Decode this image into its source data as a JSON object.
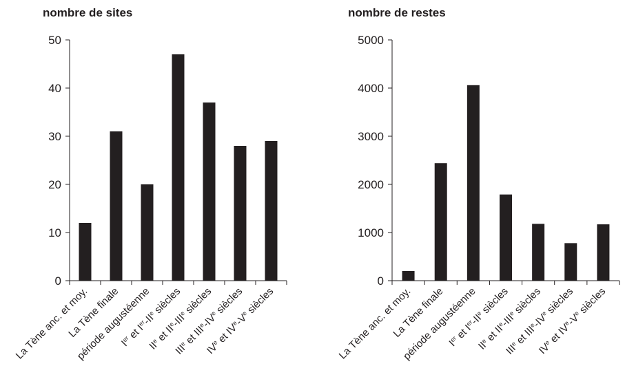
{
  "chart_data": [
    {
      "type": "bar",
      "title": "nombre de sites",
      "categories": [
        "La Tène anc. et moy.",
        "La Tène finale",
        "période augustéenne",
        "Ier et Ier-IIe siècles",
        "IIe et IIe-IIIe siècles",
        "IIIe et IIIe-IVe siècles",
        "IVe et IVe-Ve siècles"
      ],
      "values": [
        12,
        31,
        20,
        47,
        37,
        28,
        29
      ],
      "yticks": [
        "0",
        "10",
        "20",
        "30",
        "40",
        "50"
      ],
      "ylim": [
        0,
        50
      ],
      "xlabel": "",
      "ylabel": "",
      "grid": false,
      "bar_color": "#231f20"
    },
    {
      "type": "bar",
      "title": "nombre de restes",
      "categories": [
        "La Tène anc. et moy.",
        "La Tène finale",
        "période augustéenne",
        "Ier et Ier-IIe siècles",
        "IIe et IIe-IIIe siècles",
        "IIIe et IIIe-IVe siècles",
        "IVe et IVe-Ve siècles"
      ],
      "values": [
        200,
        2440,
        4060,
        1790,
        1180,
        780,
        1170
      ],
      "yticks": [
        "0",
        "1000",
        "2000",
        "3000",
        "4000",
        "5000"
      ],
      "ylim": [
        0,
        5000
      ],
      "xlabel": "",
      "ylabel": "",
      "grid": false,
      "bar_color": "#231f20"
    }
  ],
  "category_label_parts": [
    [
      {
        "t": "La Tène anc. et moy.",
        "sup": false
      }
    ],
    [
      {
        "t": "La Tène finale",
        "sup": false
      }
    ],
    [
      {
        "t": "période augustéenne",
        "sup": false
      }
    ],
    [
      {
        "t": "I",
        "sup": false
      },
      {
        "t": "er",
        "sup": true
      },
      {
        "t": " et I",
        "sup": false
      },
      {
        "t": "er",
        "sup": true
      },
      {
        "t": "-II",
        "sup": false
      },
      {
        "t": "e",
        "sup": true
      },
      {
        "t": " siècles",
        "sup": false
      }
    ],
    [
      {
        "t": "II",
        "sup": false
      },
      {
        "t": "e",
        "sup": true
      },
      {
        "t": " et II",
        "sup": false
      },
      {
        "t": "e",
        "sup": true
      },
      {
        "t": "-III",
        "sup": false
      },
      {
        "t": "e",
        "sup": true
      },
      {
        "t": " siècles",
        "sup": false
      }
    ],
    [
      {
        "t": "III",
        "sup": false
      },
      {
        "t": "e",
        "sup": true
      },
      {
        "t": " et III",
        "sup": false
      },
      {
        "t": "e",
        "sup": true
      },
      {
        "t": "-IV",
        "sup": false
      },
      {
        "t": "e",
        "sup": true
      },
      {
        "t": " siècles",
        "sup": false
      }
    ],
    [
      {
        "t": "IV",
        "sup": false
      },
      {
        "t": "e",
        "sup": true
      },
      {
        "t": " et IV",
        "sup": false
      },
      {
        "t": "e",
        "sup": true
      },
      {
        "t": "-V",
        "sup": false
      },
      {
        "t": "e",
        "sup": true
      },
      {
        "t": " siècles",
        "sup": false
      }
    ]
  ]
}
